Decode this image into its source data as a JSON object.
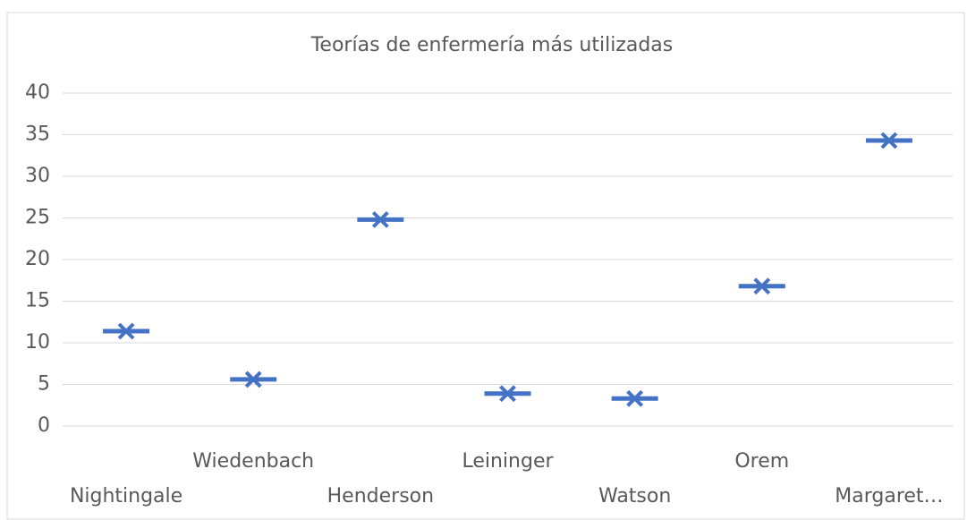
{
  "chart_data": {
    "type": "scatter",
    "title": "Teorías de enfermería más utilizadas",
    "categories": [
      "Nightingale",
      "Wiedenbach",
      "Henderson",
      "Leininger",
      "Watson",
      "Orem",
      "Margaret…"
    ],
    "values": [
      11.4,
      5.6,
      24.8,
      3.9,
      3.3,
      16.8,
      34.3
    ],
    "color": "#4472c4",
    "ylim": [
      0,
      40
    ],
    "yticks": [
      0,
      5,
      10,
      15,
      20,
      25,
      30,
      35,
      40
    ],
    "grid": true
  }
}
